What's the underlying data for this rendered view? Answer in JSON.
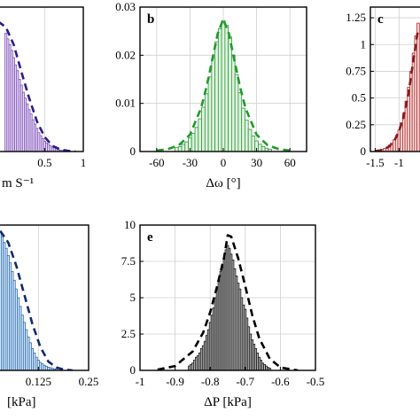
{
  "chart_data": [
    {
      "id": "a",
      "type": "bar",
      "panel_label": "",
      "xlabel": "m S⁻¹",
      "ylabel": "",
      "xlim": [
        -0.1,
        1.0
      ],
      "ylim": [
        0,
        1
      ],
      "xticks": [
        {
          "v": 0.5,
          "label": "0.5"
        },
        {
          "v": 1.0,
          "label": "1"
        }
      ],
      "yticks": [],
      "bar_width": 0.025,
      "x": [
        0.0,
        0.025,
        0.05,
        0.075,
        0.1,
        0.125,
        0.15,
        0.175,
        0.2,
        0.225,
        0.25,
        0.275,
        0.3,
        0.325,
        0.35,
        0.375,
        0.4,
        0.425,
        0.45,
        0.475,
        0.5,
        0.525,
        0.55,
        0.575,
        0.6,
        0.625,
        0.65,
        0.675,
        0.7,
        0.725,
        0.75,
        0.775,
        0.8
      ],
      "values": [
        0.82,
        0.78,
        0.74,
        0.7,
        0.65,
        0.6,
        0.56,
        0.5,
        0.46,
        0.41,
        0.37,
        0.33,
        0.29,
        0.26,
        0.22,
        0.19,
        0.16,
        0.13,
        0.11,
        0.09,
        0.07,
        0.06,
        0.05,
        0.04,
        0.03,
        0.025,
        0.02,
        0.015,
        0.01,
        0.008,
        0.006,
        0.004,
        0.003
      ],
      "fit_x": [
        -0.1,
        0.0,
        0.1,
        0.2,
        0.3,
        0.4,
        0.5,
        0.6,
        0.7,
        0.8,
        0.9
      ],
      "fit_y": [
        0.9,
        0.86,
        0.74,
        0.55,
        0.37,
        0.21,
        0.1,
        0.04,
        0.015,
        0.005,
        0.0
      ],
      "bar_fill": "#e9ddf6",
      "bar_stroke": "#7a4fb5",
      "fit_color": "#2b1d8a"
    },
    {
      "id": "b",
      "type": "bar",
      "panel_label": "b",
      "xlabel": "Δω  [°]",
      "ylabel": "",
      "xlim": [
        -75,
        75
      ],
      "ylim": [
        0,
        0.03
      ],
      "xticks": [
        {
          "v": -60,
          "label": "-60"
        },
        {
          "v": -30,
          "label": "-30"
        },
        {
          "v": 0,
          "label": "0"
        },
        {
          "v": 30,
          "label": "30"
        },
        {
          "v": 60,
          "label": "60"
        }
      ],
      "yticks": [
        {
          "v": 0,
          "label": "0"
        },
        {
          "v": 0.01,
          "label": "0.01"
        },
        {
          "v": 0.02,
          "label": "0.02"
        },
        {
          "v": 0.03,
          "label": "0.03"
        }
      ],
      "bar_width": 3,
      "x": [
        -42,
        -39,
        -36,
        -33,
        -30,
        -27,
        -24,
        -21,
        -18,
        -15,
        -12,
        -9,
        -6,
        -3,
        0,
        3,
        6,
        9,
        12,
        15,
        18,
        21,
        24,
        27,
        30,
        33,
        36,
        39,
        42
      ],
      "values": [
        0.0008,
        0.001,
        0.0015,
        0.002,
        0.0028,
        0.0038,
        0.005,
        0.0068,
        0.0092,
        0.012,
        0.0155,
        0.0195,
        0.0228,
        0.0255,
        0.0272,
        0.0262,
        0.0238,
        0.02,
        0.016,
        0.0122,
        0.009,
        0.0065,
        0.0046,
        0.0032,
        0.0022,
        0.0015,
        0.001,
        0.0007,
        0.0005
      ],
      "fit_x": [
        -60,
        -50,
        -40,
        -30,
        -20,
        -15,
        -10,
        -5,
        0,
        5,
        10,
        15,
        20,
        30,
        40,
        50,
        60
      ],
      "fit_y": [
        0.0002,
        0.0005,
        0.0013,
        0.0035,
        0.009,
        0.0135,
        0.019,
        0.0245,
        0.0275,
        0.0245,
        0.019,
        0.0135,
        0.009,
        0.0035,
        0.0013,
        0.0005,
        0.0002
      ],
      "bar_fill": "#dff2df",
      "bar_stroke": "#2e9a3a",
      "fit_color": "#1f9a2a"
    },
    {
      "id": "c",
      "type": "bar",
      "panel_label": "c",
      "xlabel": "",
      "ylabel": "",
      "xlim": [
        -1.6,
        -0.45
      ],
      "ylim": [
        0,
        1.35
      ],
      "xticks": [
        {
          "v": -1.5,
          "label": "-1.5"
        },
        {
          "v": -1.0,
          "label": "-1"
        }
      ],
      "yticks": [
        {
          "v": 0,
          "label": "0"
        },
        {
          "v": 0.25,
          "label": "0.25"
        },
        {
          "v": 0.5,
          "label": "0.5"
        },
        {
          "v": 0.75,
          "label": "0.75"
        },
        {
          "v": 1.0,
          "label": "1"
        },
        {
          "v": 1.25,
          "label": "1.25"
        }
      ],
      "bar_width": 0.05,
      "x": [
        -1.45,
        -1.4,
        -1.35,
        -1.3,
        -1.25,
        -1.2,
        -1.15,
        -1.1,
        -1.05,
        -1.0,
        -0.95,
        -0.9,
        -0.85,
        -0.8,
        -0.75,
        -0.7,
        -0.65,
        -0.6
      ],
      "values": [
        0.01,
        0.015,
        0.02,
        0.03,
        0.04,
        0.06,
        0.08,
        0.11,
        0.15,
        0.2,
        0.27,
        0.36,
        0.47,
        0.6,
        0.75,
        0.92,
        1.08,
        1.2
      ],
      "fit_x": [
        -1.5,
        -1.4,
        -1.3,
        -1.2,
        -1.1,
        -1.0,
        -0.9,
        -0.8,
        -0.7,
        -0.6
      ],
      "fit_y": [
        0.005,
        0.01,
        0.025,
        0.05,
        0.1,
        0.19,
        0.33,
        0.55,
        0.85,
        1.15
      ],
      "bar_fill": "#f6dcdc",
      "bar_stroke": "#b02a2a",
      "fit_color": "#8a1a1a"
    },
    {
      "id": "d",
      "type": "bar",
      "panel_label": "",
      "xlabel": "[kPa]",
      "ylabel": "",
      "xlim": [
        0.025,
        0.25
      ],
      "ylim": [
        0,
        1
      ],
      "xticks": [
        {
          "v": 0.125,
          "label": "0.125"
        },
        {
          "v": 0.25,
          "label": "0.25"
        }
      ],
      "yticks": [],
      "bar_width": 0.005,
      "x": [
        0.03,
        0.035,
        0.04,
        0.045,
        0.05,
        0.055,
        0.06,
        0.065,
        0.07,
        0.075,
        0.08,
        0.085,
        0.09,
        0.095,
        0.1,
        0.105,
        0.11,
        0.115,
        0.12,
        0.125,
        0.13,
        0.135,
        0.14,
        0.145,
        0.15,
        0.155,
        0.16,
        0.165,
        0.17
      ],
      "values": [
        0.95,
        0.92,
        0.88,
        0.84,
        0.79,
        0.74,
        0.68,
        0.62,
        0.56,
        0.5,
        0.44,
        0.38,
        0.33,
        0.28,
        0.23,
        0.19,
        0.15,
        0.12,
        0.09,
        0.07,
        0.055,
        0.045,
        0.035,
        0.028,
        0.022,
        0.018,
        0.014,
        0.01,
        0.008
      ],
      "fit_x": [
        0.03,
        0.05,
        0.07,
        0.09,
        0.11,
        0.13,
        0.15,
        0.17,
        0.19,
        0.21
      ],
      "fit_y": [
        0.96,
        0.88,
        0.72,
        0.52,
        0.32,
        0.16,
        0.06,
        0.02,
        0.005,
        0.0
      ],
      "bar_fill": "#d9e8f7",
      "bar_stroke": "#2a6cb0",
      "fit_color": "#102a6e"
    },
    {
      "id": "e",
      "type": "bar",
      "panel_label": "e",
      "xlabel": "ΔP  [kPa]",
      "ylabel": "",
      "xlim": [
        -1.0,
        -0.5
      ],
      "ylim": [
        0,
        10
      ],
      "xticks": [
        {
          "v": -1.0,
          "label": "-1"
        },
        {
          "v": -0.9,
          "label": "-0.9"
        },
        {
          "v": -0.8,
          "label": "-0.8"
        },
        {
          "v": -0.7,
          "label": "-0.7"
        },
        {
          "v": -0.6,
          "label": "-0.6"
        },
        {
          "v": -0.5,
          "label": "-0.5"
        }
      ],
      "yticks": [
        {
          "v": 0,
          "label": "0"
        },
        {
          "v": 2.5,
          "label": "2.5"
        },
        {
          "v": 5,
          "label": "5"
        },
        {
          "v": 7.5,
          "label": "7.5"
        },
        {
          "v": 10,
          "label": "10"
        }
      ],
      "bar_width": 0.005,
      "x": [
        -0.86,
        -0.855,
        -0.85,
        -0.845,
        -0.84,
        -0.835,
        -0.83,
        -0.825,
        -0.82,
        -0.815,
        -0.81,
        -0.805,
        -0.8,
        -0.795,
        -0.79,
        -0.785,
        -0.78,
        -0.775,
        -0.77,
        -0.765,
        -0.76,
        -0.755,
        -0.75,
        -0.745,
        -0.74,
        -0.735,
        -0.73,
        -0.725,
        -0.72,
        -0.715,
        -0.71,
        -0.705,
        -0.7,
        -0.695,
        -0.69,
        -0.685,
        -0.68,
        -0.675,
        -0.67,
        -0.665,
        -0.66,
        -0.655,
        -0.65,
        -0.645,
        -0.64,
        -0.635,
        -0.63
      ],
      "values": [
        0.3,
        0.4,
        0.5,
        0.7,
        0.9,
        1.0,
        1.2,
        1.5,
        1.7,
        2.0,
        2.4,
        2.8,
        3.3,
        3.8,
        4.3,
        5.0,
        5.6,
        6.2,
        6.8,
        7.3,
        7.7,
        8.3,
        8.6,
        8.4,
        8.0,
        7.6,
        7.0,
        6.5,
        6.0,
        5.6,
        5.0,
        4.5,
        4.2,
        3.6,
        3.0,
        2.5,
        2.1,
        1.8,
        1.5,
        1.2,
        0.9,
        0.7,
        0.5,
        0.4,
        0.3,
        0.2,
        0.15
      ],
      "fit_x": [
        -0.95,
        -0.9,
        -0.85,
        -0.82,
        -0.8,
        -0.78,
        -0.76,
        -0.75,
        -0.74,
        -0.72,
        -0.7,
        -0.68,
        -0.66,
        -0.63,
        -0.6,
        -0.55
      ],
      "fit_y": [
        0.05,
        0.3,
        1.3,
        2.6,
        4.0,
        5.8,
        7.8,
        9.3,
        9.2,
        7.7,
        5.8,
        3.8,
        2.2,
        0.8,
        0.2,
        0.0
      ],
      "bar_fill": "#bdbdbd",
      "bar_stroke": "#111111",
      "fit_color": "#000000"
    }
  ]
}
